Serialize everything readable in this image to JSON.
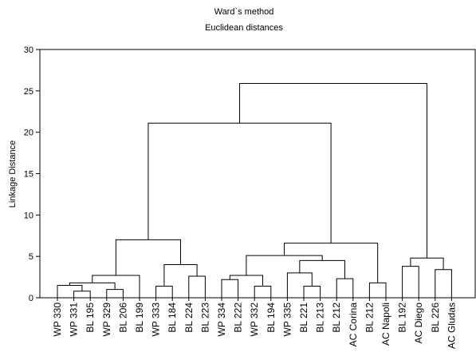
{
  "chart_data": {
    "type": "dendrogram",
    "title": "Ward`s method",
    "subtitle": "Euclidean distances",
    "ylabel": "Linkage Distance",
    "ylim": [
      0,
      30
    ],
    "yticks": [
      "0",
      "5",
      "10",
      "15",
      "20",
      "25",
      "30"
    ],
    "grid": false,
    "leaves": [
      "WP 330",
      "WP 331",
      "BL 195",
      "WP 329",
      "BL 206",
      "BL 199",
      "WP 333",
      "BL 184",
      "BL 224",
      "BL 223",
      "WP 334",
      "BL 222",
      "WP 332",
      "BL 194",
      "WP 335",
      "BL 221",
      "BL 213",
      "BL 212",
      "AC Corina",
      "BL 212",
      "AC Napoli",
      "BL 192",
      "AC Diego",
      "BL 226",
      "AC Gludas"
    ],
    "merges": [
      {
        "a": 1,
        "b": 2,
        "height": 0.8
      },
      {
        "a": 0,
        "b": "m0",
        "height": 1.5
      },
      {
        "a": 3,
        "b": 4,
        "height": 1.0
      },
      {
        "a": "m1",
        "b": "m2",
        "height": 1.8
      },
      {
        "a": "m3",
        "b": 5,
        "height": 2.7
      },
      {
        "a": 6,
        "b": 7,
        "height": 1.4
      },
      {
        "a": 8,
        "b": 9,
        "height": 2.6
      },
      {
        "a": "m5",
        "b": "m6",
        "height": 4.0
      },
      {
        "a": "m4",
        "b": "m7",
        "height": 7.0
      },
      {
        "a": 10,
        "b": 11,
        "height": 2.2
      },
      {
        "a": 12,
        "b": 13,
        "height": 1.4
      },
      {
        "a": "m9",
        "b": "m10",
        "height": 2.7
      },
      {
        "a": 15,
        "b": 16,
        "height": 1.4
      },
      {
        "a": 14,
        "b": "m12",
        "height": 3.0
      },
      {
        "a": 17,
        "b": 18,
        "height": 2.3
      },
      {
        "a": "m13",
        "b": "m14",
        "height": 4.5
      },
      {
        "a": "m11",
        "b": "m15",
        "height": 5.1
      },
      {
        "a": 19,
        "b": 20,
        "height": 1.8
      },
      {
        "a": "m16",
        "b": "m17",
        "height": 6.6
      },
      {
        "a": "m8",
        "b": "m18",
        "height": 21.1
      },
      {
        "a": 21,
        "b": 22,
        "height": 3.8
      },
      {
        "a": 23,
        "b": 24,
        "height": 3.4
      },
      {
        "a": "m20",
        "b": "m21",
        "height": 4.8
      },
      {
        "a": "m19",
        "b": "m22",
        "height": 25.9
      }
    ]
  }
}
